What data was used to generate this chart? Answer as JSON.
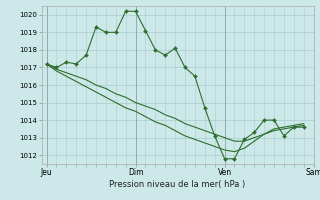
{
  "bg_color": "#cce8e8",
  "grid_color": "#aacccc",
  "line_color": "#2d6e2d",
  "marker_color": "#2d6e2d",
  "xlabel": "Pression niveau de la mer( hPa )",
  "ylim": [
    1011.5,
    1020.5
  ],
  "yticks": [
    1012,
    1013,
    1014,
    1015,
    1016,
    1017,
    1018,
    1019,
    1020
  ],
  "day_labels": [
    "Jeu",
    "Dim",
    "Ven",
    "Sam"
  ],
  "day_positions": [
    0,
    9,
    18,
    27
  ],
  "n_points": 27,
  "series1": [
    1017.2,
    1017.0,
    1017.3,
    1017.2,
    1017.7,
    1019.3,
    1019.0,
    1019.0,
    1020.2,
    1020.2,
    1019.1,
    1018.0,
    1017.7,
    1018.1,
    1017.0,
    1016.5,
    1014.7,
    1013.1,
    1011.8,
    1011.8,
    1012.9,
    1013.3,
    1014.0,
    1014.0,
    1013.1,
    1013.6,
    1013.6
  ],
  "series2": [
    1017.2,
    1016.9,
    1016.7,
    1016.5,
    1016.3,
    1016.0,
    1015.8,
    1015.5,
    1015.3,
    1015.0,
    1014.8,
    1014.6,
    1014.3,
    1014.1,
    1013.8,
    1013.6,
    1013.4,
    1013.2,
    1013.0,
    1012.8,
    1012.8,
    1013.0,
    1013.2,
    1013.4,
    1013.5,
    1013.6,
    1013.7
  ],
  "series3": [
    1017.2,
    1016.8,
    1016.5,
    1016.2,
    1015.9,
    1015.6,
    1015.3,
    1015.0,
    1014.7,
    1014.5,
    1014.2,
    1013.9,
    1013.7,
    1013.4,
    1013.1,
    1012.9,
    1012.7,
    1012.5,
    1012.3,
    1012.2,
    1012.4,
    1012.8,
    1013.2,
    1013.5,
    1013.6,
    1013.7,
    1013.8
  ]
}
